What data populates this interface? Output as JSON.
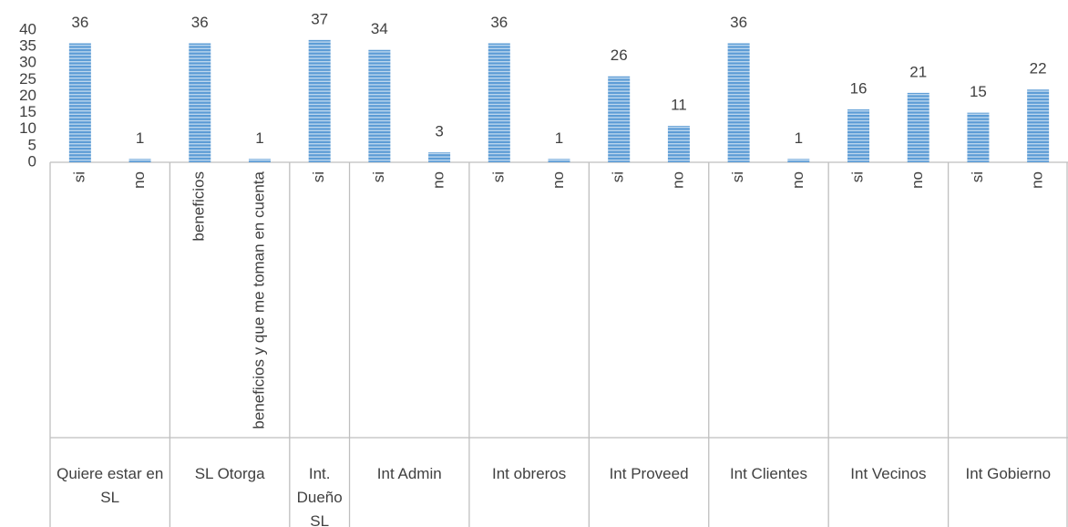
{
  "chart_data": {
    "type": "bar",
    "groups": [
      {
        "name": "Quiere estar en SL",
        "categories": [
          "si",
          "no"
        ],
        "values": [
          36,
          1
        ]
      },
      {
        "name": "SL Otorga",
        "categories": [
          "beneficios",
          "beneficios y que me toman en cuenta"
        ],
        "values": [
          36,
          1
        ]
      },
      {
        "name": "Int. Dueño SL",
        "categories": [
          "si"
        ],
        "values": [
          37
        ]
      },
      {
        "name": "Int Admin",
        "categories": [
          "si",
          "no"
        ],
        "values": [
          34,
          3
        ]
      },
      {
        "name": "Int obreros",
        "categories": [
          "si",
          "no"
        ],
        "values": [
          36,
          1
        ]
      },
      {
        "name": "Int Proveed",
        "categories": [
          "si",
          "no"
        ],
        "values": [
          26,
          11
        ]
      },
      {
        "name": "Int Clientes",
        "categories": [
          "si",
          "no"
        ],
        "values": [
          36,
          1
        ]
      },
      {
        "name": "Int Vecinos",
        "categories": [
          "si",
          "no"
        ],
        "values": [
          16,
          21
        ]
      },
      {
        "name": "Int Gobierno",
        "categories": [
          "si",
          "no"
        ],
        "values": [
          15,
          22
        ]
      }
    ],
    "color": "#5b9bd5",
    "ylim": [
      0,
      40
    ],
    "yticks": [
      0,
      5,
      10,
      15,
      20,
      25,
      30,
      35,
      40
    ],
    "grid": false
  }
}
